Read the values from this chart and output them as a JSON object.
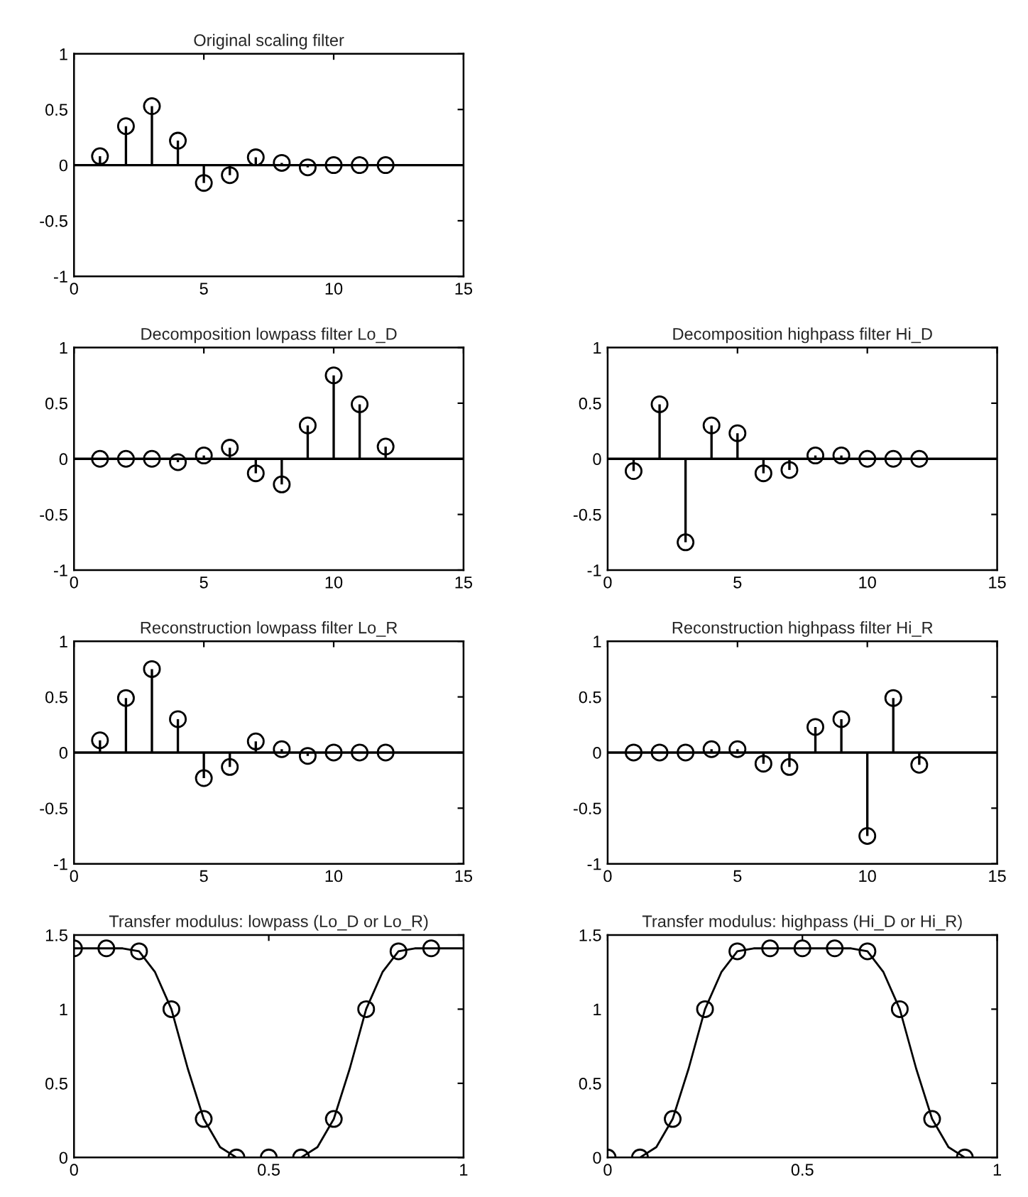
{
  "chart_data": [
    {
      "type": "lollipop",
      "title": "Original scaling filter",
      "x": [
        1,
        2,
        3,
        4,
        5,
        6,
        7,
        8,
        9,
        10,
        11,
        12
      ],
      "values": [
        0.08,
        0.35,
        0.53,
        0.22,
        -0.16,
        -0.09,
        0.07,
        0.02,
        -0.02,
        0,
        0,
        0
      ],
      "color": "#000000",
      "marker": "circle",
      "xlim": [
        0,
        15
      ],
      "ylim": [
        -1,
        1
      ],
      "xticks": [
        0,
        5,
        10,
        15
      ],
      "yticks": [
        -1,
        -0.5,
        0,
        0.5,
        1
      ],
      "ref_lines": [
        {
          "axis": "y",
          "value": 0,
          "color": "#000000"
        }
      ],
      "grid": false
    },
    {
      "type": "lollipop",
      "title": "Decomposition lowpass filter Lo_D",
      "x": [
        1,
        2,
        3,
        4,
        5,
        6,
        7,
        8,
        9,
        10,
        11,
        12
      ],
      "values": [
        0,
        0,
        0,
        -0.03,
        0.03,
        0.1,
        -0.13,
        -0.23,
        0.3,
        0.75,
        0.49,
        0.11
      ],
      "color": "#000000",
      "marker": "circle",
      "xlim": [
        0,
        15
      ],
      "ylim": [
        -1,
        1
      ],
      "xticks": [
        0,
        5,
        10,
        15
      ],
      "yticks": [
        -1,
        -0.5,
        0,
        0.5,
        1
      ],
      "ref_lines": [
        {
          "axis": "y",
          "value": 0,
          "color": "#000000"
        }
      ],
      "grid": false
    },
    {
      "type": "lollipop",
      "title": "Decomposition highpass filter Hi_D",
      "x": [
        1,
        2,
        3,
        4,
        5,
        6,
        7,
        8,
        9,
        10,
        11,
        12
      ],
      "values": [
        -0.11,
        0.49,
        -0.75,
        0.3,
        0.23,
        -0.13,
        -0.1,
        0.03,
        0.03,
        0,
        0,
        0
      ],
      "color": "#000000",
      "marker": "circle",
      "xlim": [
        0,
        15
      ],
      "ylim": [
        -1,
        1
      ],
      "xticks": [
        0,
        5,
        10,
        15
      ],
      "yticks": [
        -1,
        -0.5,
        0,
        0.5,
        1
      ],
      "ref_lines": [
        {
          "axis": "y",
          "value": 0,
          "color": "#000000"
        }
      ],
      "grid": false
    },
    {
      "type": "lollipop",
      "title": "Reconstruction lowpass filter Lo_R",
      "x": [
        1,
        2,
        3,
        4,
        5,
        6,
        7,
        8,
        9,
        10,
        11,
        12
      ],
      "values": [
        0.11,
        0.49,
        0.75,
        0.3,
        -0.23,
        -0.13,
        0.1,
        0.03,
        -0.03,
        0,
        0,
        0
      ],
      "color": "#000000",
      "marker": "circle",
      "xlim": [
        0,
        15
      ],
      "ylim": [
        -1,
        1
      ],
      "xticks": [
        0,
        5,
        10,
        15
      ],
      "yticks": [
        -1,
        -0.5,
        0,
        0.5,
        1
      ],
      "ref_lines": [
        {
          "axis": "y",
          "value": 0,
          "color": "#000000"
        }
      ],
      "grid": false
    },
    {
      "type": "lollipop",
      "title": "Reconstruction highpass filter Hi_R",
      "x": [
        1,
        2,
        3,
        4,
        5,
        6,
        7,
        8,
        9,
        10,
        11,
        12
      ],
      "values": [
        0,
        0,
        0,
        0.03,
        0.03,
        -0.1,
        -0.13,
        0.23,
        0.3,
        -0.75,
        0.49,
        -0.11
      ],
      "color": "#000000",
      "marker": "circle",
      "xlim": [
        0,
        15
      ],
      "ylim": [
        -1,
        1
      ],
      "xticks": [
        0,
        5,
        10,
        15
      ],
      "yticks": [
        -1,
        -0.5,
        0,
        0.5,
        1
      ],
      "ref_lines": [
        {
          "axis": "y",
          "value": 0,
          "color": "#000000"
        }
      ],
      "grid": false
    },
    {
      "type": "line",
      "title": "Transfer modulus: lowpass (Lo_D or Lo_R)",
      "xlim": [
        0,
        1
      ],
      "ylim": [
        0,
        1.5
      ],
      "xticks": [
        0,
        0.5,
        1
      ],
      "yticks": [
        0,
        0.5,
        1,
        1.5
      ],
      "grid": false,
      "series": [
        {
          "type": "line",
          "marker": "none",
          "color": "#000000",
          "x": [
            0,
            0.042,
            0.083,
            0.125,
            0.167,
            0.208,
            0.25,
            0.292,
            0.333,
            0.375,
            0.417,
            0.458,
            0.5,
            0.542,
            0.583,
            0.625,
            0.667,
            0.708,
            0.75,
            0.792,
            0.833,
            0.875,
            0.917,
            0.958,
            1
          ],
          "values": [
            1.41,
            1.41,
            1.41,
            1.41,
            1.39,
            1.25,
            1.0,
            0.6,
            0.26,
            0.07,
            0,
            0,
            0,
            0,
            0,
            0.07,
            0.26,
            0.6,
            1.0,
            1.25,
            1.39,
            1.41,
            1.41,
            1.41,
            1.41
          ]
        },
        {
          "type": "scatter",
          "marker": "circle",
          "color": "#000000",
          "x": [
            0,
            0.083,
            0.167,
            0.25,
            0.333,
            0.417,
            0.5,
            0.583,
            0.667,
            0.75,
            0.833,
            0.917
          ],
          "values": [
            1.41,
            1.41,
            1.39,
            1.0,
            0.26,
            0,
            0,
            0,
            0.26,
            1.0,
            1.39,
            1.41
          ]
        }
      ]
    },
    {
      "type": "line",
      "title": "Transfer modulus: highpass (Hi_D or Hi_R)",
      "xlim": [
        0,
        1
      ],
      "ylim": [
        0,
        1.5
      ],
      "xticks": [
        0,
        0.5,
        1
      ],
      "yticks": [
        0,
        0.5,
        1,
        1.5
      ],
      "grid": false,
      "series": [
        {
          "type": "line",
          "marker": "none",
          "color": "#000000",
          "x": [
            0,
            0.042,
            0.083,
            0.125,
            0.167,
            0.208,
            0.25,
            0.292,
            0.333,
            0.375,
            0.417,
            0.458,
            0.5,
            0.542,
            0.583,
            0.625,
            0.667,
            0.708,
            0.75,
            0.792,
            0.833,
            0.875,
            0.917
          ],
          "values": [
            0,
            0,
            0,
            0.07,
            0.26,
            0.6,
            1.0,
            1.25,
            1.39,
            1.41,
            1.41,
            1.41,
            1.41,
            1.41,
            1.41,
            1.41,
            1.39,
            1.25,
            1.0,
            0.6,
            0.26,
            0.07,
            0
          ]
        },
        {
          "type": "scatter",
          "marker": "circle",
          "color": "#000000",
          "x": [
            0,
            0.083,
            0.167,
            0.25,
            0.333,
            0.417,
            0.5,
            0.583,
            0.667,
            0.75,
            0.833,
            0.917
          ],
          "values": [
            0,
            0,
            0.26,
            1.0,
            1.39,
            1.41,
            1.41,
            1.41,
            1.39,
            1.0,
            0.26,
            0
          ]
        }
      ]
    }
  ]
}
